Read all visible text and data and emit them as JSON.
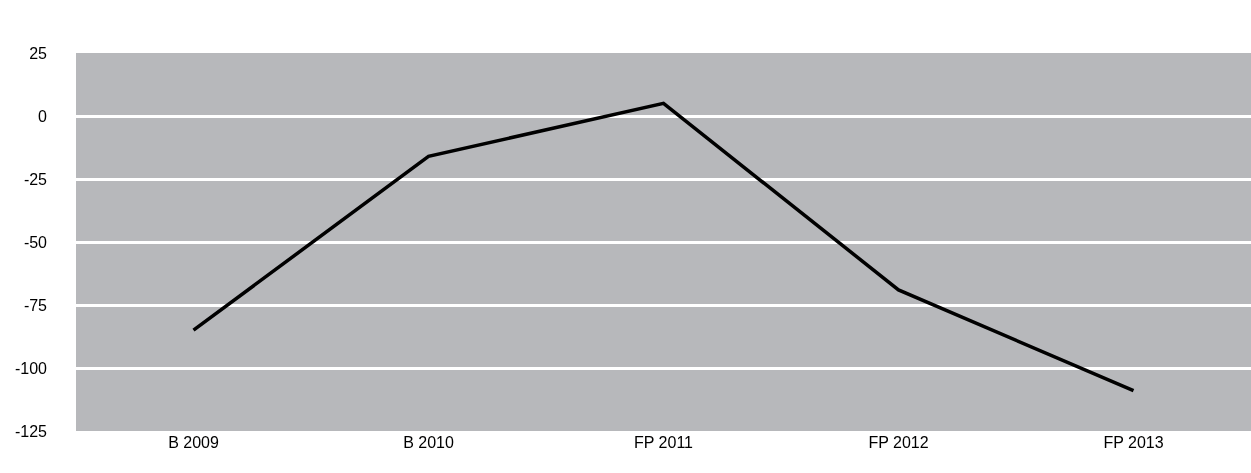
{
  "chart_data": {
    "type": "line",
    "categories": [
      "B 2009",
      "B 2010",
      "FP 2011",
      "FP 2012",
      "FP 2013"
    ],
    "series": [
      {
        "color": "#000000",
        "values": [
          -85,
          -16,
          5,
          -69,
          -109
        ]
      }
    ],
    "ylim": [
      -125,
      25
    ],
    "yticks": [
      -125,
      -100,
      -75,
      -50,
      -25,
      0,
      25
    ],
    "grid": "y",
    "legend": false,
    "marker": "none",
    "line_style": "solid"
  }
}
